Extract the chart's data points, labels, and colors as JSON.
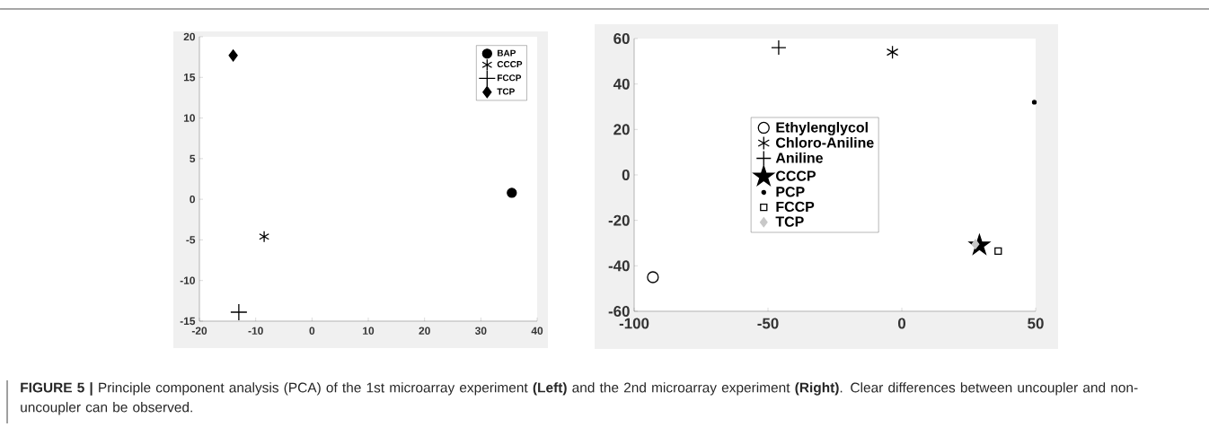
{
  "chart_data": [
    {
      "type": "scatter",
      "xlim": [
        -20,
        40
      ],
      "ylim": [
        -15,
        20
      ],
      "xticks": [
        -20,
        -10,
        0,
        10,
        20,
        30,
        40
      ],
      "yticks": [
        -15,
        -10,
        -5,
        0,
        5,
        10,
        15,
        20
      ],
      "legend": "top right",
      "grid": false,
      "series": [
        {
          "name": "BAP",
          "color": "#000000",
          "marker": "circle",
          "x": [
            35.5
          ],
          "values": [
            0.8
          ]
        },
        {
          "name": "CCCP",
          "color": "#000000",
          "x": [
            -8.5
          ],
          "values": [
            -4.6
          ]
        },
        {
          "name": "FCCP",
          "color": "#000000",
          "marker": "cross",
          "x": [
            -13
          ],
          "values": [
            -13.9
          ]
        },
        {
          "name": "TCP",
          "color": "#000000",
          "marker": "diamond",
          "x": [
            -14
          ],
          "values": [
            17.7
          ]
        }
      ],
      "annotations": [
        "**FIGURE 5 |** Principle component analysis (PCA) of the 1st microarray experiment **(Left)** and the 2nd microarray experiment **(Right)**. Clear differences between uncoupler and non-uncoupler can be observed."
      ]
    },
    {
      "type": "scatter",
      "xlim": [
        -100,
        50
      ],
      "ylim": [
        -60,
        60
      ],
      "xticks": [
        -100,
        -50,
        0,
        50
      ],
      "yticks": [
        -60,
        -40,
        -20,
        0,
        20,
        40,
        60
      ],
      "legend": "center",
      "grid": false,
      "series": [
        {
          "name": "Ethylenglycol",
          "color": "#000000",
          "marker": "circle",
          "x": [
            -93
          ],
          "values": [
            -45
          ]
        },
        {
          "name": "Chloro-Aniline",
          "color": "#000000",
          "x": [
            -3.5
          ],
          "values": [
            54
          ]
        },
        {
          "name": "Aniline",
          "color": "#000000",
          "marker": "cross",
          "x": [
            -46
          ],
          "values": [
            56
          ]
        },
        {
          "name": "CCCP",
          "color": "#000000",
          "marker": "star",
          "x": [
            29
          ],
          "values": [
            -31
          ]
        },
        {
          "name": "PCP",
          "color": "#000000",
          "marker": "circle",
          "x": [
            49.5
          ],
          "values": [
            32
          ]
        },
        {
          "name": "FCCP",
          "color": "#000000",
          "marker": "square",
          "x": [
            36
          ],
          "values": [
            -33.5
          ]
        },
        {
          "name": "TCP",
          "color": "#c8c8c8",
          "marker": "diamond",
          "x": [
            27.5
          ],
          "values": [
            -30.5
          ]
        }
      ]
    }
  ]
}
